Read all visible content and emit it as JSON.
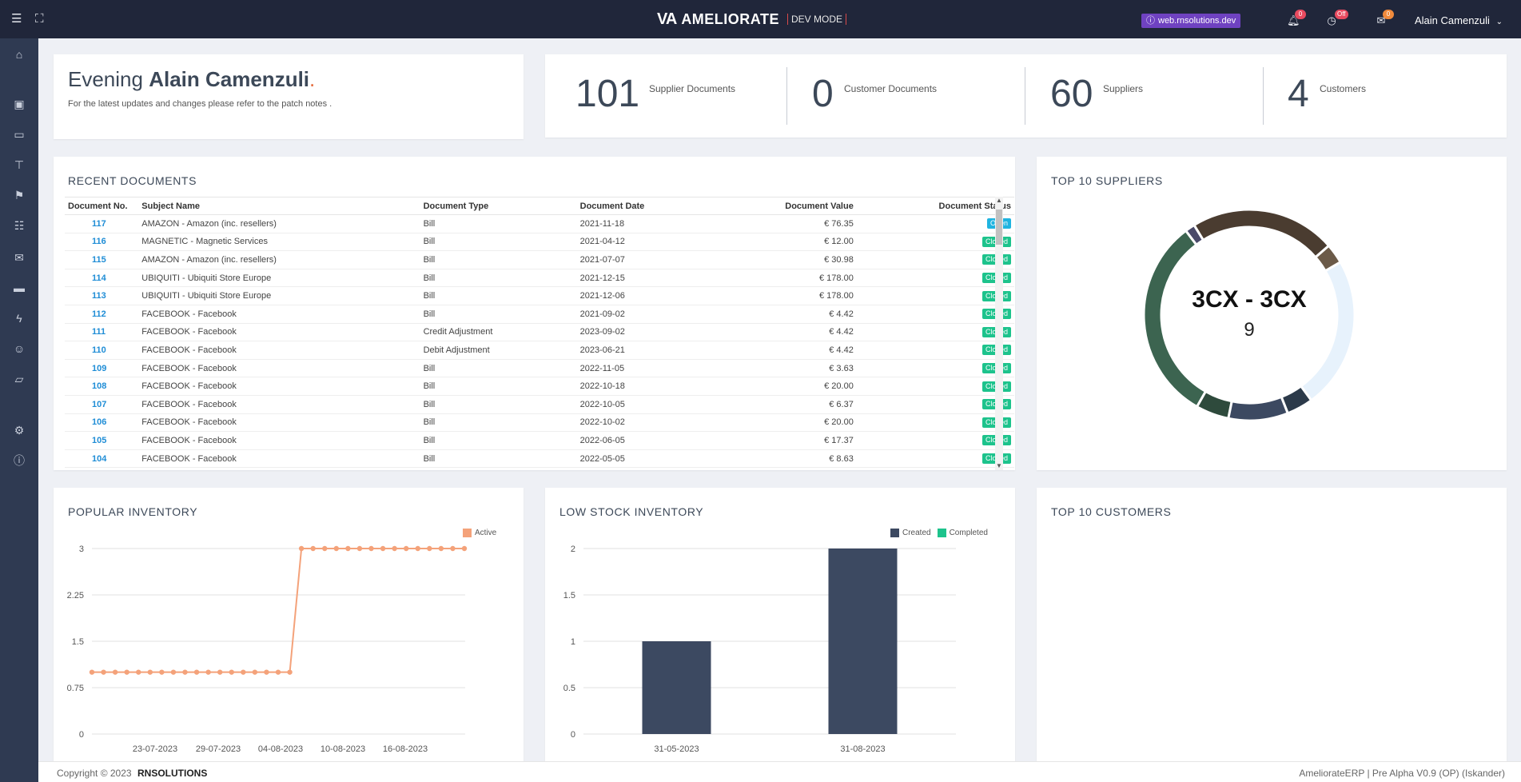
{
  "topbar": {
    "brand_logo": "VA",
    "brand_name": "AMELIORATE",
    "brand_mode": "DEV MODE",
    "env_badge": "web.rnsolutions.dev",
    "notifications_count": "0",
    "clock_status": "Off",
    "messages_count": "0",
    "user_name": "Alain Camenzuli"
  },
  "greeting": {
    "prefix": "Evening",
    "name": "Alain Camenzuli",
    "dot": ".",
    "subtitle": "For the latest updates and changes please refer to the patch notes ."
  },
  "stats": [
    {
      "value": "101",
      "label": "Supplier Documents"
    },
    {
      "value": "0",
      "label": "Customer Documents"
    },
    {
      "value": "60",
      "label": "Suppliers"
    },
    {
      "value": "4",
      "label": "Customers"
    }
  ],
  "recent": {
    "title": "RECENT DOCUMENTS",
    "columns": [
      "Document No.",
      "Subject Name",
      "Document Type",
      "Document Date",
      "Document Value",
      "Document Status"
    ],
    "rows": [
      {
        "no": "117",
        "subject": "AMAZON - Amazon (inc. resellers)",
        "type": "Bill",
        "date": "2021-11-18",
        "value": "€ 76.35",
        "status": "Open"
      },
      {
        "no": "116",
        "subject": "MAGNETIC - Magnetic Services",
        "type": "Bill",
        "date": "2021-04-12",
        "value": "€ 12.00",
        "status": "Closed"
      },
      {
        "no": "115",
        "subject": "AMAZON - Amazon (inc. resellers)",
        "type": "Bill",
        "date": "2021-07-07",
        "value": "€ 30.98",
        "status": "Closed"
      },
      {
        "no": "114",
        "subject": "UBIQUITI - Ubiquiti Store Europe",
        "type": "Bill",
        "date": "2021-12-15",
        "value": "€ 178.00",
        "status": "Closed"
      },
      {
        "no": "113",
        "subject": "UBIQUITI - Ubiquiti Store Europe",
        "type": "Bill",
        "date": "2021-12-06",
        "value": "€ 178.00",
        "status": "Closed"
      },
      {
        "no": "112",
        "subject": "FACEBOOK - Facebook",
        "type": "Bill",
        "date": "2021-09-02",
        "value": "€ 4.42",
        "status": "Closed"
      },
      {
        "no": "111",
        "subject": "FACEBOOK - Facebook",
        "type": "Credit Adjustment",
        "date": "2023-09-02",
        "value": "€ 4.42",
        "status": "Closed"
      },
      {
        "no": "110",
        "subject": "FACEBOOK - Facebook",
        "type": "Debit Adjustment",
        "date": "2023-06-21",
        "value": "€ 4.42",
        "status": "Closed"
      },
      {
        "no": "109",
        "subject": "FACEBOOK - Facebook",
        "type": "Bill",
        "date": "2022-11-05",
        "value": "€ 3.63",
        "status": "Closed"
      },
      {
        "no": "108",
        "subject": "FACEBOOK - Facebook",
        "type": "Bill",
        "date": "2022-10-18",
        "value": "€ 20.00",
        "status": "Closed"
      },
      {
        "no": "107",
        "subject": "FACEBOOK - Facebook",
        "type": "Bill",
        "date": "2022-10-05",
        "value": "€ 6.37",
        "status": "Closed"
      },
      {
        "no": "106",
        "subject": "FACEBOOK - Facebook",
        "type": "Bill",
        "date": "2022-10-02",
        "value": "€ 20.00",
        "status": "Closed"
      },
      {
        "no": "105",
        "subject": "FACEBOOK - Facebook",
        "type": "Bill",
        "date": "2022-06-05",
        "value": "€ 17.37",
        "status": "Closed"
      },
      {
        "no": "104",
        "subject": "FACEBOOK - Facebook",
        "type": "Bill",
        "date": "2022-05-05",
        "value": "€ 8.63",
        "status": "Closed"
      }
    ]
  },
  "suppliers": {
    "title": "TOP 10 SUPPLIERS",
    "center_name": "3CX - 3CX",
    "center_value": "9"
  },
  "popular": {
    "title": "POPULAR INVENTORY"
  },
  "lowstock": {
    "title": "LOW STOCK INVENTORY"
  },
  "customers": {
    "title": "TOP 10 CUSTOMERS"
  },
  "footer": {
    "copyright": "Copyright © 2023",
    "company": "RNSOLUTIONS",
    "version": "AmeliorateERP | Pre Alpha V0.9 (OP) (Iskander)"
  },
  "colors": {
    "open": "#1fb4e0",
    "closed": "#1dc38c",
    "line": "#f4a27a",
    "bar_created": "#3c4961",
    "bar_completed": "#1dc38c"
  },
  "chart_data": [
    {
      "type": "pie",
      "title": "TOP 10 SUPPLIERS",
      "center_label": "3CX - 3CX",
      "center_value": "9",
      "slices": [
        {
          "value": 22,
          "color": "#4a3c30"
        },
        {
          "value": 3,
          "color": "#6b5a48"
        },
        {
          "value": 23,
          "color": "#e7f2fc"
        },
        {
          "value": 4,
          "color": "#2c3a4a"
        },
        {
          "value": 9,
          "color": "#3c4961"
        },
        {
          "value": 5,
          "color": "#2e4a3c"
        },
        {
          "value": 31,
          "color": "#3c6450"
        },
        {
          "value": 1.5,
          "color": "#4a4a6a"
        }
      ]
    },
    {
      "type": "line",
      "title": "POPULAR INVENTORY",
      "series": [
        {
          "name": "Active",
          "color": "#f4a27a",
          "values": [
            1,
            1,
            1,
            1,
            1,
            1,
            1,
            1,
            1,
            1,
            1,
            1,
            1,
            1,
            1,
            1,
            1,
            1,
            3,
            3,
            3,
            3,
            3,
            3,
            3,
            3,
            3,
            3,
            3,
            3,
            3,
            3,
            3
          ]
        }
      ],
      "x_tick_labels": [
        "23-07-2023",
        "29-07-2023",
        "04-08-2023",
        "10-08-2023",
        "16-08-2023"
      ],
      "y_ticks": [
        "0",
        "0.75",
        "1.5",
        "2.25",
        "3"
      ],
      "ylim": [
        0,
        3
      ]
    },
    {
      "type": "bar",
      "title": "LOW STOCK INVENTORY",
      "categories": [
        "31-05-2023",
        "31-08-2023"
      ],
      "series": [
        {
          "name": "Created",
          "color": "#3c4961",
          "values": [
            1,
            2
          ]
        },
        {
          "name": "Completed",
          "color": "#1dc38c",
          "values": [
            0,
            0
          ]
        }
      ],
      "y_ticks": [
        "0",
        "0.5",
        "1",
        "1.5",
        "2"
      ],
      "ylim": [
        0,
        2
      ]
    }
  ]
}
